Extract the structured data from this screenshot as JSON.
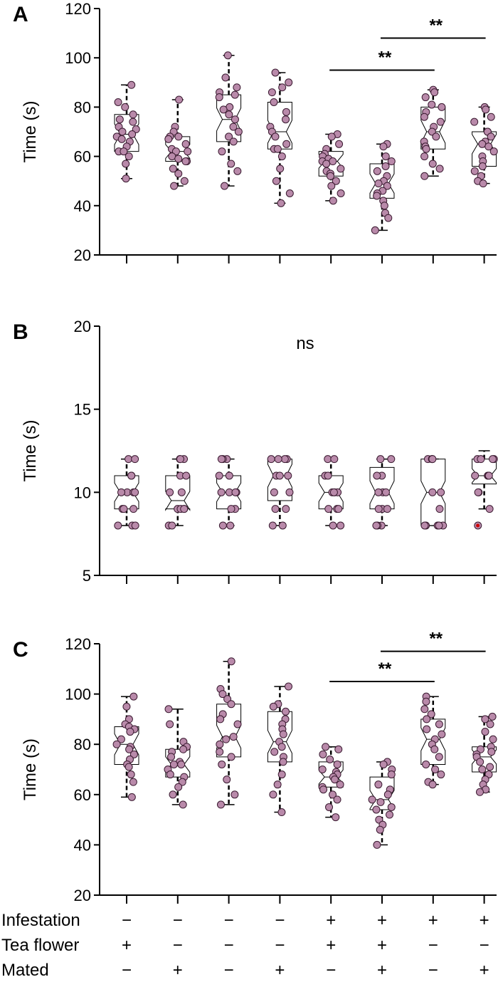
{
  "chart_data": [
    {
      "panel": "A",
      "type": "box",
      "ylabel": "Time (s)",
      "ylim": [
        20,
        120
      ],
      "yticks": [
        20,
        40,
        60,
        80,
        100,
        120
      ],
      "groups": [
        {
          "whisker_low": 51,
          "q1": 62,
          "median": 69,
          "q3": 77,
          "whisker_high": 89,
          "points": [
            89,
            82,
            80,
            77,
            75,
            74,
            72,
            71,
            70,
            69,
            68,
            67,
            66,
            64,
            62,
            62,
            60,
            57,
            51
          ]
        },
        {
          "whisker_low": 48,
          "q1": 58,
          "median": 62,
          "q3": 68,
          "whisker_high": 83,
          "points": [
            83,
            72,
            70,
            68,
            68,
            67,
            65,
            63,
            62,
            62,
            60,
            59,
            58,
            58,
            55,
            53,
            50,
            48
          ]
        },
        {
          "whisker_low": 48,
          "q1": 66,
          "median": 75,
          "q3": 85,
          "whisker_high": 101,
          "points": [
            101,
            92,
            88,
            86,
            85,
            84,
            80,
            79,
            77,
            75,
            72,
            70,
            68,
            66,
            62,
            57,
            54,
            48
          ]
        },
        {
          "whisker_low": 41,
          "q1": 63,
          "median": 70,
          "q3": 82,
          "whisker_high": 94,
          "points": [
            94,
            90,
            88,
            86,
            82,
            78,
            75,
            72,
            70,
            68,
            65,
            63,
            63,
            60,
            55,
            50,
            45,
            41
          ]
        },
        {
          "whisker_low": 42,
          "q1": 52,
          "median": 58,
          "q3": 62,
          "whisker_high": 69,
          "points": [
            69,
            68,
            65,
            63,
            61,
            60,
            59,
            58,
            58,
            57,
            55,
            54,
            53,
            52,
            50,
            48,
            45,
            42
          ]
        },
        {
          "whisker_low": 30,
          "q1": 43,
          "median": 49,
          "q3": 57,
          "whisker_high": 65,
          "points": [
            65,
            64,
            60,
            58,
            56,
            54,
            52,
            50,
            49,
            48,
            46,
            45,
            44,
            42,
            40,
            37,
            35,
            30
          ]
        },
        {
          "whisker_low": 52,
          "q1": 63,
          "median": 70,
          "q3": 80,
          "whisker_high": 87,
          "points": [
            87,
            86,
            84,
            81,
            80,
            78,
            76,
            74,
            72,
            70,
            68,
            66,
            64,
            63,
            60,
            57,
            55,
            52
          ]
        },
        {
          "whisker_low": 49,
          "q1": 56,
          "median": 65,
          "q3": 70,
          "whisker_high": 80,
          "points": [
            80,
            79,
            76,
            74,
            70,
            70,
            68,
            66,
            65,
            64,
            62,
            60,
            58,
            56,
            54,
            52,
            50,
            49
          ]
        }
      ],
      "significance": [
        {
          "from": 5,
          "to": 7,
          "y": 95,
          "label": "**"
        },
        {
          "from": 6,
          "to": 8,
          "y": 108,
          "label": "**"
        }
      ]
    },
    {
      "panel": "B",
      "type": "box",
      "ylabel": "Time (s)",
      "ylim": [
        5,
        20
      ],
      "yticks": [
        5,
        10,
        15,
        20
      ],
      "annotation": "ns",
      "groups": [
        {
          "whisker_low": 8,
          "q1": 9,
          "median": 10,
          "q3": 11,
          "whisker_high": 12,
          "points": [
            12,
            12,
            11,
            11,
            10,
            10,
            10,
            10,
            9,
            9,
            9,
            8,
            8,
            8
          ]
        },
        {
          "whisker_low": 8,
          "q1": 9,
          "median": 9.5,
          "q3": 11,
          "whisker_high": 12,
          "points": [
            12,
            12,
            12,
            11,
            11,
            10,
            10,
            9,
            9,
            9,
            9,
            8,
            8
          ]
        },
        {
          "whisker_low": 8,
          "q1": 9,
          "median": 10,
          "q3": 11,
          "whisker_high": 12,
          "points": [
            12,
            12,
            12,
            11,
            11,
            10,
            10,
            10,
            10,
            9,
            9,
            8,
            8
          ]
        },
        {
          "whisker_low": 8,
          "q1": 9.5,
          "median": 11,
          "q3": 12,
          "whisker_high": 12,
          "points": [
            12,
            12,
            12,
            12,
            11,
            11,
            11,
            10,
            10,
            9,
            9,
            8,
            8
          ]
        },
        {
          "whisker_low": 8,
          "q1": 9,
          "median": 10,
          "q3": 11,
          "whisker_high": 12,
          "points": [
            12,
            12,
            11,
            11,
            10,
            10,
            10,
            10,
            9,
            9,
            9,
            8,
            8
          ]
        },
        {
          "whisker_low": 8,
          "q1": 9,
          "median": 10,
          "q3": 11.5,
          "whisker_high": 12,
          "points": [
            12,
            12,
            11,
            11,
            10,
            10,
            10,
            9,
            9,
            9,
            8,
            8,
            8
          ]
        },
        {
          "whisker_low": 8,
          "q1": 8,
          "median": 10,
          "q3": 12,
          "whisker_high": 12,
          "points": [
            12,
            12,
            12,
            12,
            10,
            10,
            9,
            8,
            8,
            8,
            8,
            8
          ]
        },
        {
          "whisker_low": 9,
          "q1": 10.5,
          "median": 11,
          "q3": 12,
          "whisker_high": 12.5,
          "points": [
            12,
            12,
            12,
            12,
            11,
            11,
            11,
            11,
            10,
            10,
            9,
            8
          ],
          "outliers": [
            8
          ]
        }
      ]
    },
    {
      "panel": "C",
      "type": "box",
      "ylabel": "Time (s)",
      "ylim": [
        20,
        120
      ],
      "yticks": [
        20,
        40,
        60,
        80,
        100,
        120
      ],
      "groups": [
        {
          "whisker_low": 59,
          "q1": 72,
          "median": 80,
          "q3": 87,
          "whisker_high": 99,
          "points": [
            99,
            95,
            90,
            88,
            87,
            86,
            85,
            82,
            80,
            79,
            78,
            76,
            74,
            72,
            71,
            68,
            65,
            59
          ]
        },
        {
          "whisker_low": 56,
          "q1": 67,
          "median": 72,
          "q3": 78,
          "whisker_high": 94,
          "points": [
            94,
            88,
            81,
            79,
            78,
            77,
            75,
            73,
            72,
            72,
            70,
            68,
            67,
            65,
            63,
            60,
            56
          ]
        },
        {
          "whisker_low": 56,
          "q1": 75,
          "median": 83,
          "q3": 96,
          "whisker_high": 113,
          "points": [
            113,
            102,
            100,
            98,
            96,
            92,
            90,
            88,
            83,
            82,
            80,
            77,
            75,
            72,
            66,
            60,
            56
          ]
        },
        {
          "whisker_low": 53,
          "q1": 73,
          "median": 81,
          "q3": 93,
          "whisker_high": 103,
          "points": [
            103,
            96,
            95,
            93,
            90,
            88,
            86,
            84,
            81,
            79,
            77,
            75,
            73,
            68,
            64,
            60,
            53
          ]
        },
        {
          "whisker_low": 51,
          "q1": 63,
          "median": 67,
          "q3": 73,
          "whisker_high": 79,
          "points": [
            79,
            78,
            76,
            74,
            72,
            70,
            69,
            68,
            67,
            66,
            64,
            63,
            62,
            60,
            58,
            55,
            51
          ]
        },
        {
          "whisker_low": 40,
          "q1": 54,
          "median": 58,
          "q3": 67,
          "whisker_high": 73,
          "points": [
            73,
            72,
            70,
            68,
            64,
            62,
            60,
            58,
            57,
            55,
            54,
            52,
            50,
            48,
            46,
            40
          ]
        },
        {
          "whisker_low": 64,
          "q1": 72,
          "median": 82,
          "q3": 90,
          "whisker_high": 99,
          "points": [
            99,
            97,
            94,
            92,
            90,
            88,
            86,
            84,
            82,
            80,
            78,
            75,
            72,
            70,
            68,
            65,
            64
          ]
        },
        {
          "whisker_low": 61,
          "q1": 69,
          "median": 75,
          "q3": 79,
          "whisker_high": 91,
          "points": [
            91,
            90,
            88,
            85,
            82,
            79,
            78,
            77,
            76,
            75,
            73,
            71,
            70,
            68,
            66,
            64,
            62,
            61
          ]
        }
      ],
      "significance": [
        {
          "from": 5,
          "to": 7,
          "y": 105,
          "label": "**"
        },
        {
          "from": 6,
          "to": 8,
          "y": 117,
          "label": "**"
        }
      ]
    }
  ],
  "conditions": [
    {
      "label": "Infestation",
      "values": [
        "−",
        "−",
        "−",
        "−",
        "+",
        "+",
        "+",
        "+"
      ]
    },
    {
      "label": "Tea flower",
      "values": [
        "+",
        "−",
        "−",
        "−",
        "+",
        "+",
        "−",
        "−"
      ]
    },
    {
      "label": "Mated",
      "values": [
        "−",
        "+",
        "−",
        "+",
        "−",
        "+",
        "−",
        "+"
      ]
    }
  ],
  "colors": {
    "point_fill": "#b98aaa",
    "point_stroke": "#3a1a30",
    "box_fill": "#ffffff",
    "axis": "#000000",
    "outlier": "#d00000"
  }
}
